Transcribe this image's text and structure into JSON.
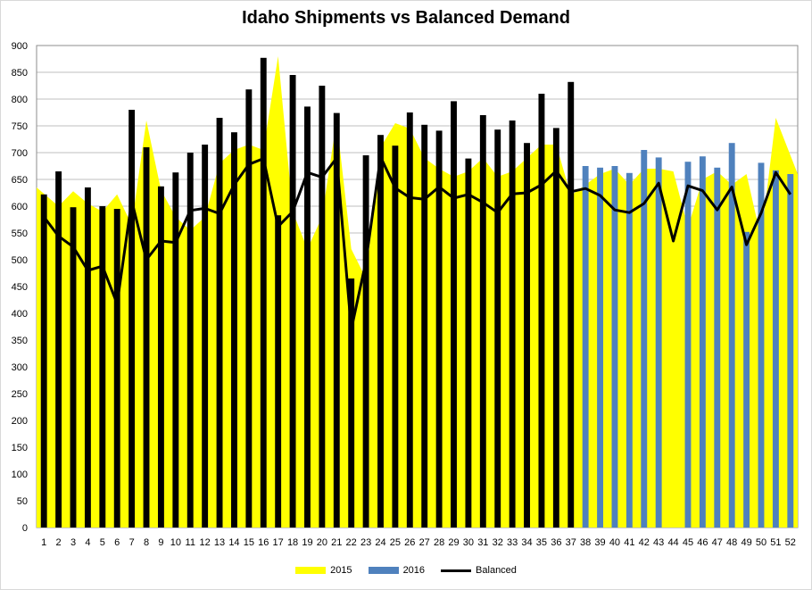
{
  "colors": {
    "series_2015": "#ffff00",
    "series_2016": "#4f81bd",
    "series_2016_black": "#000000",
    "balanced": "#000000",
    "grid": "#bfbfbf"
  },
  "chart_data": {
    "type": "bar",
    "title": "Idaho Shipments vs Balanced Demand",
    "xlabel": "",
    "ylabel": "",
    "ylim": [
      0,
      900
    ],
    "yticks": [
      0,
      50,
      100,
      150,
      200,
      250,
      300,
      350,
      400,
      450,
      500,
      550,
      600,
      650,
      700,
      750,
      800,
      850,
      900
    ],
    "grid": true,
    "legend_position": "bottom",
    "categories": [
      "1",
      "2",
      "3",
      "4",
      "5",
      "6",
      "7",
      "8",
      "9",
      "10",
      "11",
      "12",
      "13",
      "14",
      "15",
      "16",
      "17",
      "18",
      "19",
      "20",
      "21",
      "22",
      "23",
      "24",
      "25",
      "26",
      "27",
      "28",
      "29",
      "30",
      "31",
      "32",
      "33",
      "34",
      "35",
      "36",
      "37",
      "38",
      "39",
      "40",
      "41",
      "42",
      "43",
      "44",
      "45",
      "46",
      "47",
      "48",
      "49",
      "50",
      "51",
      "52"
    ],
    "series": [
      {
        "name": "2015",
        "type": "area",
        "values": [
          635,
          600,
          628,
          605,
          590,
          622,
          565,
          760,
          630,
          580,
          555,
          580,
          680,
          705,
          715,
          705,
          880,
          590,
          520,
          580,
          760,
          520,
          465,
          710,
          755,
          745,
          690,
          670,
          655,
          665,
          690,
          655,
          665,
          690,
          715,
          715,
          620,
          640,
          660,
          670,
          640,
          670,
          670,
          665,
          560,
          650,
          665,
          640,
          660,
          540,
          765,
          660
        ]
      },
      {
        "name": "2016",
        "type": "bar",
        "values": [
          622,
          665,
          598,
          635,
          600,
          595,
          780,
          710,
          637,
          663,
          700,
          715,
          765,
          738,
          818,
          877,
          583,
          845,
          786,
          825,
          774,
          465,
          695,
          733,
          713,
          775,
          752,
          741,
          796,
          689,
          770,
          743,
          760,
          718,
          810,
          746,
          832,
          675,
          672,
          675,
          662,
          705,
          691,
          null,
          683,
          693,
          672,
          718,
          552,
          681,
          667,
          660
        ]
      },
      {
        "name": "Balanced",
        "type": "line",
        "values": [
          580,
          544,
          524,
          480,
          488,
          418,
          610,
          500,
          535,
          532,
          592,
          596,
          586,
          640,
          678,
          689,
          562,
          590,
          663,
          654,
          690,
          370,
          497,
          692,
          634,
          616,
          613,
          636,
          615,
          622,
          607,
          588,
          623,
          625,
          640,
          666,
          627,
          633,
          620,
          593,
          588,
          605,
          643,
          535,
          638,
          629,
          593,
          636,
          528,
          587,
          663,
          622
        ]
      }
    ],
    "bar_color_switch_week": 38
  }
}
